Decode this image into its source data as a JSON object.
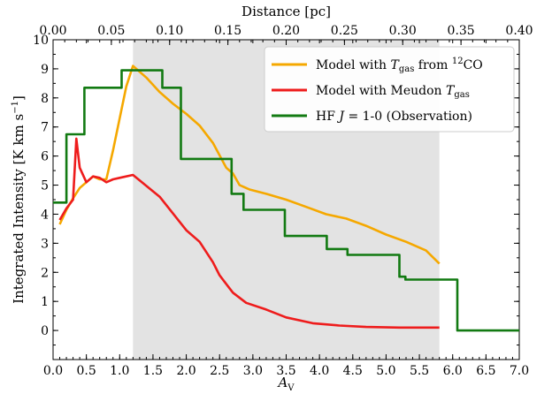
{
  "chart_data": {
    "type": "line",
    "xlabel": "A",
    "xlabel_sub": "V",
    "top_xlabel": "Distance [pc]",
    "ylabel": "Integrated Intensity [K km s",
    "ylabel_sup": "−1",
    "ylabel_end": "]",
    "xlim": [
      0.0,
      7.0
    ],
    "ylim": [
      -1,
      10
    ],
    "top_xlim": [
      0.0,
      0.4
    ],
    "x_ticks": [
      "0.0",
      "0.5",
      "1.0",
      "1.5",
      "2.0",
      "2.5",
      "3.0",
      "3.5",
      "4.0",
      "4.5",
      "5.0",
      "5.5",
      "6.0",
      "6.5",
      "7.0"
    ],
    "y_ticks": [
      "0",
      "1",
      "2",
      "3",
      "4",
      "5",
      "6",
      "7",
      "8",
      "9",
      "10"
    ],
    "top_ticks": [
      "0.00",
      "0.05",
      "0.10",
      "0.15",
      "0.20",
      "0.25",
      "0.30",
      "0.35",
      "0.40"
    ],
    "shaded_region": [
      1.2,
      5.8
    ],
    "shade_color": "#e3e3e3",
    "legend_position": "top-right",
    "series": [
      {
        "key": "model_12co",
        "legend": {
          "pre": "Model with ",
          "var": "T",
          "sub": "gas",
          "mid": " from ",
          "sup": "12",
          "post": "CO"
        },
        "color": "#f5a800",
        "x": [
          0.1,
          0.2,
          0.3,
          0.4,
          0.5,
          0.6,
          0.7,
          0.8,
          0.9,
          1.0,
          1.1,
          1.2,
          1.4,
          1.6,
          1.8,
          2.0,
          2.2,
          2.4,
          2.6,
          2.65,
          2.7,
          2.8,
          2.85,
          2.9,
          2.95,
          3.2,
          3.5,
          3.8,
          4.1,
          4.4,
          4.7,
          5.0,
          5.3,
          5.6,
          5.8
        ],
        "y": [
          3.65,
          4.15,
          4.55,
          4.9,
          5.1,
          5.3,
          5.2,
          5.2,
          6.2,
          7.3,
          8.4,
          9.1,
          8.7,
          8.2,
          7.8,
          7.45,
          7.05,
          6.45,
          5.6,
          5.5,
          5.4,
          5.0,
          4.95,
          4.9,
          4.85,
          4.7,
          4.5,
          4.25,
          4.0,
          3.85,
          3.6,
          3.3,
          3.05,
          2.75,
          2.3
        ]
      },
      {
        "key": "model_meudon",
        "legend": {
          "pre": "Model with Meudon ",
          "var": "T",
          "sub": "gas"
        },
        "color": "#ee1c1c",
        "x": [
          0.1,
          0.2,
          0.3,
          0.35,
          0.4,
          0.5,
          0.6,
          0.7,
          0.8,
          0.9,
          1.0,
          1.2,
          1.6,
          2.0,
          2.2,
          2.4,
          2.5,
          2.6,
          2.7,
          2.9,
          3.2,
          3.5,
          3.9,
          4.3,
          4.7,
          5.2,
          5.8
        ],
        "y": [
          3.8,
          4.2,
          4.5,
          6.6,
          5.6,
          5.1,
          5.3,
          5.25,
          5.1,
          5.2,
          5.25,
          5.35,
          4.6,
          3.45,
          3.05,
          2.35,
          1.9,
          1.6,
          1.3,
          0.95,
          0.72,
          0.45,
          0.25,
          0.17,
          0.12,
          0.1,
          0.1
        ]
      },
      {
        "key": "hf_obs",
        "legend": {
          "pre": "HF ",
          "var": "J",
          "post": " = 1-0 (Observation)"
        },
        "color": "#127a12",
        "x": [
          0.0,
          0.2,
          0.2,
          0.47,
          0.47,
          1.03,
          1.03,
          1.64,
          1.64,
          1.92,
          1.92,
          2.68,
          2.68,
          2.86,
          2.86,
          3.48,
          3.48,
          4.11,
          4.11,
          4.42,
          4.42,
          5.2,
          5.2,
          5.29,
          5.29,
          6.07,
          6.07,
          7.0
        ],
        "y": [
          4.4,
          4.4,
          6.75,
          6.75,
          8.35,
          8.35,
          8.95,
          8.95,
          8.35,
          8.35,
          5.9,
          5.9,
          4.7,
          4.7,
          4.15,
          4.15,
          3.25,
          3.25,
          2.8,
          2.8,
          2.6,
          2.6,
          1.85,
          1.85,
          1.75,
          1.75,
          0.0,
          0.0
        ]
      }
    ]
  }
}
